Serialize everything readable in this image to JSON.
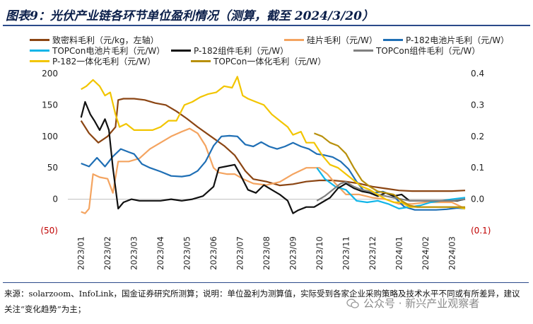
{
  "header": {
    "title": "图表9：光伏产业链各环节单位盈利情况（测算，截至 2024/3/20）"
  },
  "footer": {
    "source": "来源：solarzoom、InfoLink，国金证券研究所测算；说明：单位盈利为测算值，实际受到各家企业采购策略及技术水平不同或有所差异，建议关注“变化趋势”为主；",
    "watermark": "公众号 · 新兴产业观察者"
  },
  "chart_data": {
    "type": "line",
    "x_ticks": [
      "2023/01",
      "2023/02",
      "2023/03",
      "2023/04",
      "2023/05",
      "2023/06",
      "2023/07",
      "2023/08",
      "2023/09",
      "2023/10",
      "2023/11",
      "2023/12",
      "2024/01",
      "2024/02",
      "2024/03"
    ],
    "left_axis": {
      "ylim": [
        -50,
        200
      ],
      "ticks": [
        200,
        150,
        100,
        50,
        0,
        -50
      ],
      "tick_labels": [
        "200",
        "150",
        "100",
        "50",
        "0",
        "(50)"
      ]
    },
    "right_axis": {
      "ylim": [
        -0.1,
        0.4
      ],
      "ticks": [
        0.4,
        0.3,
        0.2,
        0.1,
        0.0,
        -0.1
      ],
      "tick_labels": [
        "0.4",
        "0.3",
        "0.2",
        "0.1",
        "0.0",
        "(0.1)"
      ]
    },
    "legend_position": "top",
    "series": [
      {
        "name": "致密料毛利（元/kg，左轴）",
        "color": "#8b4513",
        "axis": "left",
        "points": [
          [
            0.0,
            125
          ],
          [
            0.3,
            105
          ],
          [
            0.65,
            90
          ],
          [
            1.0,
            100
          ],
          [
            1.3,
            115
          ],
          [
            1.4,
            158
          ],
          [
            1.6,
            160
          ],
          [
            2.0,
            160
          ],
          [
            2.4,
            158
          ],
          [
            2.8,
            153
          ],
          [
            3.2,
            150
          ],
          [
            3.6,
            140
          ],
          [
            4.0,
            128
          ],
          [
            4.4,
            115
          ],
          [
            4.9,
            100
          ],
          [
            5.4,
            85
          ],
          [
            5.8,
            70
          ],
          [
            6.2,
            45
          ],
          [
            6.5,
            32
          ],
          [
            7.0,
            28
          ],
          [
            7.5,
            22
          ],
          [
            8.0,
            24
          ],
          [
            8.5,
            28
          ],
          [
            9.0,
            30
          ],
          [
            9.5,
            30
          ],
          [
            10.0,
            28
          ],
          [
            10.5,
            25
          ],
          [
            11.0,
            20
          ],
          [
            11.5,
            17
          ],
          [
            12.0,
            14
          ],
          [
            12.5,
            13
          ],
          [
            13.0,
            13
          ],
          [
            13.5,
            13
          ],
          [
            14.0,
            13
          ],
          [
            14.5,
            14
          ]
        ]
      },
      {
        "name": "硅片毛利（元/W）",
        "color": "#f4a460",
        "axis": "right",
        "points": [
          [
            0.0,
            -0.04
          ],
          [
            0.15,
            -0.045
          ],
          [
            0.3,
            -0.03
          ],
          [
            0.45,
            0.08
          ],
          [
            0.7,
            0.07
          ],
          [
            1.0,
            0.065
          ],
          [
            1.2,
            0.02
          ],
          [
            1.4,
            0.12
          ],
          [
            1.8,
            0.12
          ],
          [
            2.2,
            0.13
          ],
          [
            2.6,
            0.16
          ],
          [
            3.0,
            0.18
          ],
          [
            3.4,
            0.2
          ],
          [
            3.8,
            0.215
          ],
          [
            4.1,
            0.225
          ],
          [
            4.4,
            0.21
          ],
          [
            4.7,
            0.17
          ],
          [
            5.0,
            0.1
          ],
          [
            5.2,
            0.085
          ],
          [
            5.5,
            0.08
          ],
          [
            5.8,
            0.08
          ],
          [
            6.1,
            0.065
          ],
          [
            6.5,
            0.05
          ],
          [
            7.0,
            0.045
          ],
          [
            7.5,
            0.055
          ],
          [
            8.0,
            0.08
          ],
          [
            8.5,
            0.1
          ],
          [
            9.0,
            0.1
          ],
          [
            9.3,
            0.08
          ],
          [
            9.6,
            0.05
          ],
          [
            10.0,
            0.015
          ],
          [
            10.5,
            0.015
          ],
          [
            11.0,
            0.005
          ],
          [
            11.5,
            0.0
          ],
          [
            12.0,
            -0.015
          ],
          [
            12.5,
            -0.015
          ],
          [
            13.0,
            -0.01
          ],
          [
            13.5,
            -0.01
          ],
          [
            14.0,
            -0.01
          ],
          [
            14.5,
            -0.03
          ]
        ]
      },
      {
        "name": "P-182电池片毛利（元/W）",
        "color": "#1f6fb5",
        "axis": "left",
        "points": [
          [
            0.0,
            57
          ],
          [
            0.3,
            52
          ],
          [
            0.6,
            66
          ],
          [
            0.9,
            52
          ],
          [
            1.2,
            68
          ],
          [
            1.5,
            80
          ],
          [
            1.8,
            75
          ],
          [
            2.0,
            72
          ],
          [
            2.3,
            56
          ],
          [
            2.6,
            50
          ],
          [
            3.0,
            44
          ],
          [
            3.4,
            37
          ],
          [
            3.8,
            36
          ],
          [
            4.1,
            38
          ],
          [
            4.4,
            45
          ],
          [
            4.7,
            60
          ],
          [
            5.0,
            85
          ],
          [
            5.3,
            100
          ],
          [
            5.6,
            101
          ],
          [
            5.9,
            100
          ],
          [
            6.2,
            87
          ],
          [
            6.5,
            84
          ],
          [
            6.8,
            91
          ],
          [
            7.1,
            84
          ],
          [
            7.4,
            80
          ],
          [
            7.7,
            84
          ],
          [
            8.0,
            90
          ],
          [
            8.3,
            84
          ],
          [
            8.6,
            80
          ],
          [
            8.9,
            72
          ],
          [
            9.2,
            70
          ],
          [
            9.5,
            67
          ],
          [
            9.8,
            60
          ],
          [
            10.1,
            48
          ],
          [
            10.4,
            28
          ],
          [
            10.7,
            12
          ],
          [
            11.0,
            10
          ],
          [
            11.4,
            12
          ],
          [
            11.8,
            5
          ],
          [
            12.2,
            -12
          ],
          [
            12.6,
            -17
          ],
          [
            13.0,
            -17
          ],
          [
            13.4,
            -17
          ],
          [
            13.8,
            -16
          ],
          [
            14.2,
            -14
          ],
          [
            14.5,
            -15
          ]
        ]
      },
      {
        "name": "TOPCon电池片毛利（元/W）",
        "color": "#12b5e8",
        "axis": "right",
        "points": [
          [
            8.9,
            0.1
          ],
          [
            9.2,
            0.065
          ],
          [
            9.6,
            0.04
          ],
          [
            10.0,
            0.03
          ],
          [
            10.4,
            -0.005
          ],
          [
            10.8,
            -0.01
          ],
          [
            11.2,
            -0.005
          ],
          [
            11.6,
            -0.015
          ],
          [
            12.0,
            -0.03
          ],
          [
            12.4,
            -0.025
          ],
          [
            12.8,
            -0.02
          ],
          [
            13.2,
            -0.01
          ],
          [
            13.6,
            -0.005
          ],
          [
            14.0,
            0.0
          ],
          [
            14.5,
            0.005
          ]
        ]
      },
      {
        "name": "P-182组件毛利（元/W）",
        "color": "#111111",
        "axis": "right",
        "points": [
          [
            0.0,
            0.26
          ],
          [
            0.15,
            0.31
          ],
          [
            0.35,
            0.27
          ],
          [
            0.5,
            0.25
          ],
          [
            0.7,
            0.22
          ],
          [
            0.9,
            0.255
          ],
          [
            1.05,
            0.22
          ],
          [
            1.2,
            0.1
          ],
          [
            1.4,
            -0.03
          ],
          [
            1.6,
            -0.01
          ],
          [
            1.9,
            0.0
          ],
          [
            2.2,
            -0.005
          ],
          [
            2.6,
            -0.005
          ],
          [
            3.0,
            -0.005
          ],
          [
            3.4,
            0.0
          ],
          [
            3.8,
            -0.005
          ],
          [
            4.2,
            0.0
          ],
          [
            4.6,
            0.01
          ],
          [
            5.0,
            0.04
          ],
          [
            5.2,
            0.1
          ],
          [
            5.5,
            0.105
          ],
          [
            5.8,
            0.11
          ],
          [
            6.0,
            0.08
          ],
          [
            6.3,
            0.03
          ],
          [
            6.6,
            0.02
          ],
          [
            6.9,
            0.045
          ],
          [
            7.2,
            0.03
          ],
          [
            7.5,
            0.015
          ],
          [
            7.8,
            -0.005
          ],
          [
            8.0,
            -0.045
          ],
          [
            8.2,
            -0.035
          ],
          [
            8.5,
            -0.025
          ],
          [
            8.8,
            -0.025
          ],
          [
            9.1,
            -0.01
          ],
          [
            9.4,
            0.005
          ],
          [
            9.7,
            0.035
          ],
          [
            10.0,
            0.05
          ],
          [
            10.3,
            0.035
          ],
          [
            10.6,
            0.025
          ],
          [
            10.9,
            0.02
          ],
          [
            11.2,
            0.01
          ],
          [
            11.5,
            0.02
          ],
          [
            11.8,
            0.01
          ],
          [
            12.1,
            0.015
          ],
          [
            12.4,
            -0.005
          ],
          [
            12.7,
            -0.005
          ],
          [
            13.0,
            -0.005
          ],
          [
            13.4,
            -0.005
          ],
          [
            13.8,
            -0.005
          ],
          [
            14.2,
            -0.005
          ],
          [
            14.5,
            0.0
          ]
        ]
      },
      {
        "name": "TOPCon组件毛利（元/W）",
        "color": "#808080",
        "axis": "right",
        "points": [
          [
            8.9,
            -0.005
          ],
          [
            9.2,
            0.01
          ],
          [
            9.5,
            0.03
          ],
          [
            9.8,
            0.05
          ],
          [
            10.0,
            0.055
          ],
          [
            10.3,
            0.04
          ],
          [
            10.6,
            0.03
          ],
          [
            10.9,
            0.025
          ],
          [
            11.2,
            0.015
          ],
          [
            11.5,
            0.01
          ],
          [
            11.8,
            0.005
          ],
          [
            12.1,
            0.0
          ],
          [
            12.4,
            -0.005
          ],
          [
            12.8,
            -0.005
          ],
          [
            13.2,
            -0.005
          ],
          [
            13.6,
            -0.005
          ],
          [
            14.0,
            -0.005
          ],
          [
            14.5,
            0.0
          ]
        ]
      },
      {
        "name": "P-182一体化毛利（元/W）",
        "color": "#f2c500",
        "axis": "right",
        "points": [
          [
            0.0,
            0.35
          ],
          [
            0.2,
            0.36
          ],
          [
            0.45,
            0.38
          ],
          [
            0.7,
            0.36
          ],
          [
            0.9,
            0.33
          ],
          [
            1.1,
            0.34
          ],
          [
            1.3,
            0.27
          ],
          [
            1.45,
            0.23
          ],
          [
            1.7,
            0.24
          ],
          [
            2.0,
            0.22
          ],
          [
            2.3,
            0.22
          ],
          [
            2.7,
            0.22
          ],
          [
            3.0,
            0.23
          ],
          [
            3.3,
            0.25
          ],
          [
            3.6,
            0.25
          ],
          [
            3.9,
            0.3
          ],
          [
            4.2,
            0.31
          ],
          [
            4.5,
            0.325
          ],
          [
            4.8,
            0.335
          ],
          [
            5.1,
            0.34
          ],
          [
            5.4,
            0.36
          ],
          [
            5.7,
            0.355
          ],
          [
            5.9,
            0.39
          ],
          [
            6.1,
            0.33
          ],
          [
            6.3,
            0.32
          ],
          [
            6.6,
            0.31
          ],
          [
            6.9,
            0.3
          ],
          [
            7.2,
            0.27
          ],
          [
            7.5,
            0.25
          ],
          [
            7.8,
            0.23
          ],
          [
            8.0,
            0.205
          ],
          [
            8.3,
            0.215
          ],
          [
            8.5,
            0.18
          ],
          [
            8.8,
            0.18
          ],
          [
            9.1,
            0.14
          ],
          [
            9.4,
            0.11
          ],
          [
            9.7,
            0.1
          ],
          [
            10.0,
            0.08
          ],
          [
            10.3,
            0.06
          ],
          [
            10.6,
            0.04
          ],
          [
            10.9,
            0.03
          ],
          [
            11.2,
            0.015
          ],
          [
            11.5,
            0.0
          ],
          [
            11.8,
            -0.01
          ],
          [
            12.1,
            -0.01
          ],
          [
            12.4,
            -0.025
          ],
          [
            12.7,
            -0.025
          ],
          [
            13.0,
            -0.025
          ],
          [
            13.4,
            -0.025
          ],
          [
            13.8,
            -0.025
          ],
          [
            14.2,
            -0.025
          ],
          [
            14.5,
            -0.03
          ]
        ]
      },
      {
        "name": "TOPCon一体化毛利（元/W）",
        "color": "#b8900c",
        "axis": "right",
        "points": [
          [
            8.8,
            0.21
          ],
          [
            9.1,
            0.2
          ],
          [
            9.4,
            0.18
          ],
          [
            9.7,
            0.17
          ],
          [
            10.0,
            0.145
          ],
          [
            10.3,
            0.1
          ],
          [
            10.6,
            0.06
          ],
          [
            10.9,
            0.04
          ],
          [
            11.2,
            0.025
          ],
          [
            11.5,
            0.02
          ],
          [
            11.8,
            0.015
          ],
          [
            12.1,
            -0.005
          ],
          [
            12.4,
            -0.02
          ],
          [
            12.7,
            -0.025
          ],
          [
            13.0,
            -0.025
          ],
          [
            13.4,
            -0.025
          ],
          [
            13.8,
            -0.025
          ],
          [
            14.2,
            -0.025
          ],
          [
            14.5,
            -0.025
          ]
        ]
      }
    ]
  }
}
